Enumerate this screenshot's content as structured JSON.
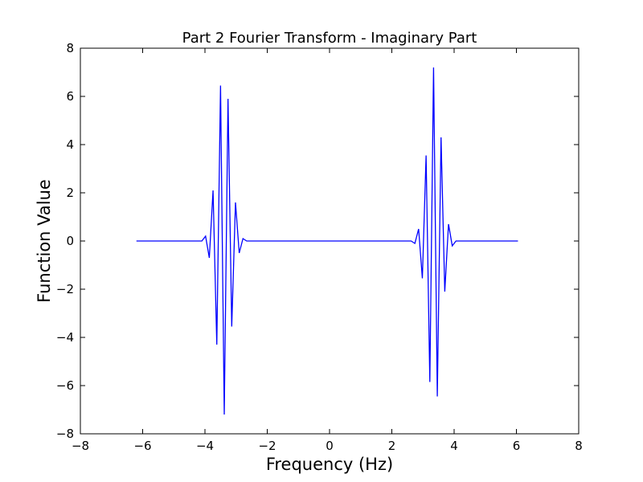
{
  "chart_data": {
    "type": "line",
    "title": "Part 2 Fourier Transform - Imaginary Part",
    "xlabel": "Frequency (Hz)",
    "ylabel": "Function Value",
    "xlim": [
      -8,
      8
    ],
    "ylim": [
      -8,
      8
    ],
    "xticks": [
      -8,
      -6,
      -4,
      -2,
      0,
      2,
      4,
      6,
      8
    ],
    "yticks": [
      -8,
      -6,
      -4,
      -2,
      0,
      2,
      4,
      6,
      8
    ],
    "xtick_labels": [
      "−8",
      "−6",
      "−4",
      "−2",
      "0",
      "2",
      "4",
      "6",
      "8"
    ],
    "ytick_labels": [
      "−8",
      "−6",
      "−4",
      "−2",
      "0",
      "2",
      "4",
      "6",
      "8"
    ],
    "grid": false,
    "line_color": "#0000ff",
    "series": [
      {
        "x": [
          -6.2,
          -4.55,
          -4.1,
          -3.98,
          -3.86,
          -3.74,
          -3.62,
          -3.5,
          -3.38,
          -3.26,
          -3.14,
          -3.02,
          -2.9,
          -2.78,
          -2.66,
          -0.05,
          0.0,
          2.62,
          2.74,
          2.86,
          2.98,
          3.1,
          3.22,
          3.34,
          3.46,
          3.58,
          3.7,
          3.82,
          3.94,
          4.06,
          4.55,
          6.05
        ],
        "y": [
          0,
          0,
          0,
          0.2,
          -0.7,
          2.1,
          -4.3,
          6.45,
          -7.2,
          5.9,
          -3.55,
          1.6,
          -0.5,
          0.1,
          0,
          0,
          0,
          0,
          -0.1,
          0.5,
          -1.55,
          3.55,
          -5.85,
          7.2,
          -6.45,
          4.3,
          -2.1,
          0.7,
          -0.2,
          0,
          0,
          0
        ]
      }
    ]
  }
}
